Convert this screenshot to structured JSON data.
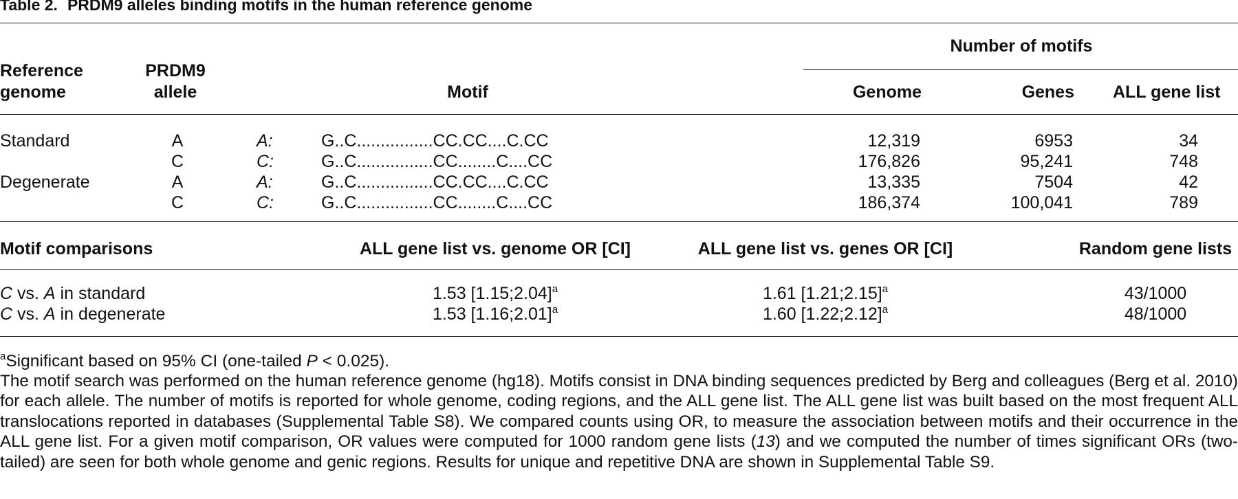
{
  "title": {
    "label": "Table 2.",
    "text": "PRDM9 alleles binding motifs in the human reference genome"
  },
  "header": {
    "reference_genome": [
      "Reference",
      "genome"
    ],
    "prdm9_allele": [
      "PRDM9",
      "allele"
    ],
    "motif": "Motif",
    "number_of_motifs": "Number of motifs",
    "genome": "Genome",
    "genes": "Genes",
    "all_gene_list": "ALL gene list"
  },
  "rows": [
    {
      "ref": "Standard",
      "allele": "A",
      "allele_it": "A:",
      "motif": "G..C................CC.CC....C.CC",
      "genome": "12,319",
      "genes": "6953",
      "all": "34"
    },
    {
      "ref": "",
      "allele": "C",
      "allele_it": "C:",
      "motif": "G..C................CC........C....CC",
      "genome": "176,826",
      "genes": "95,241",
      "all": "748"
    },
    {
      "ref": "Degenerate",
      "allele": "A",
      "allele_it": "A:",
      "motif": "G..C................CC.CC....C.CC",
      "genome": "13,335",
      "genes": "7504",
      "all": "42"
    },
    {
      "ref": "",
      "allele": "C",
      "allele_it": "C:",
      "motif": "G..C................CC........C....CC",
      "genome": "186,374",
      "genes": "100,041",
      "all": "789"
    }
  ],
  "comparisons_header": {
    "col1": "Motif comparisons",
    "col2": "ALL gene list vs. genome OR [CI]",
    "col3": "ALL gene list vs. genes OR [CI]",
    "col4": "Random gene lists"
  },
  "comparisons": [
    {
      "c": "C",
      "vs": " vs. ",
      "a": "A",
      "rest": " in standard",
      "or_genome": "1.53 [1.15;2.04]",
      "or_genes": "1.61 [1.21;2.15]",
      "sup": "a",
      "random": "43/1000"
    },
    {
      "c": "C",
      "vs": " vs. ",
      "a": "A",
      "rest": " in degenerate",
      "or_genome": "1.53 [1.16;2.01]",
      "or_genes": "1.60 [1.22;2.12]",
      "sup": "a",
      "random": "48/1000"
    }
  ],
  "footnote": {
    "sup": "a",
    "text1": "Significant based on 95% CI (one-tailed ",
    "p": "P",
    "text2": " < 0.025)."
  },
  "description": {
    "part1": "The motif search was performed on the human reference genome (hg18). Motifs consist in DNA binding sequences predicted by Berg and colleagues (Berg et al. 2010) for each allele. The number of motifs is reported for whole genome, coding regions, and the ALL gene list. The ALL gene list was built based on the most frequent ALL translocations reported in databases (Supplemental Table S8). We compared counts using OR, to measure the association between motifs and their occurrence in the ALL gene list. For a given motif comparison, OR values were computed for 1000 random gene lists (",
    "ref": "13",
    "part2": ") and we computed the number of times significant ORs (two-tailed) are seen for both whole genome and genic regions. Results for unique and repetitive DNA are shown in Supplemental Table S9."
  }
}
